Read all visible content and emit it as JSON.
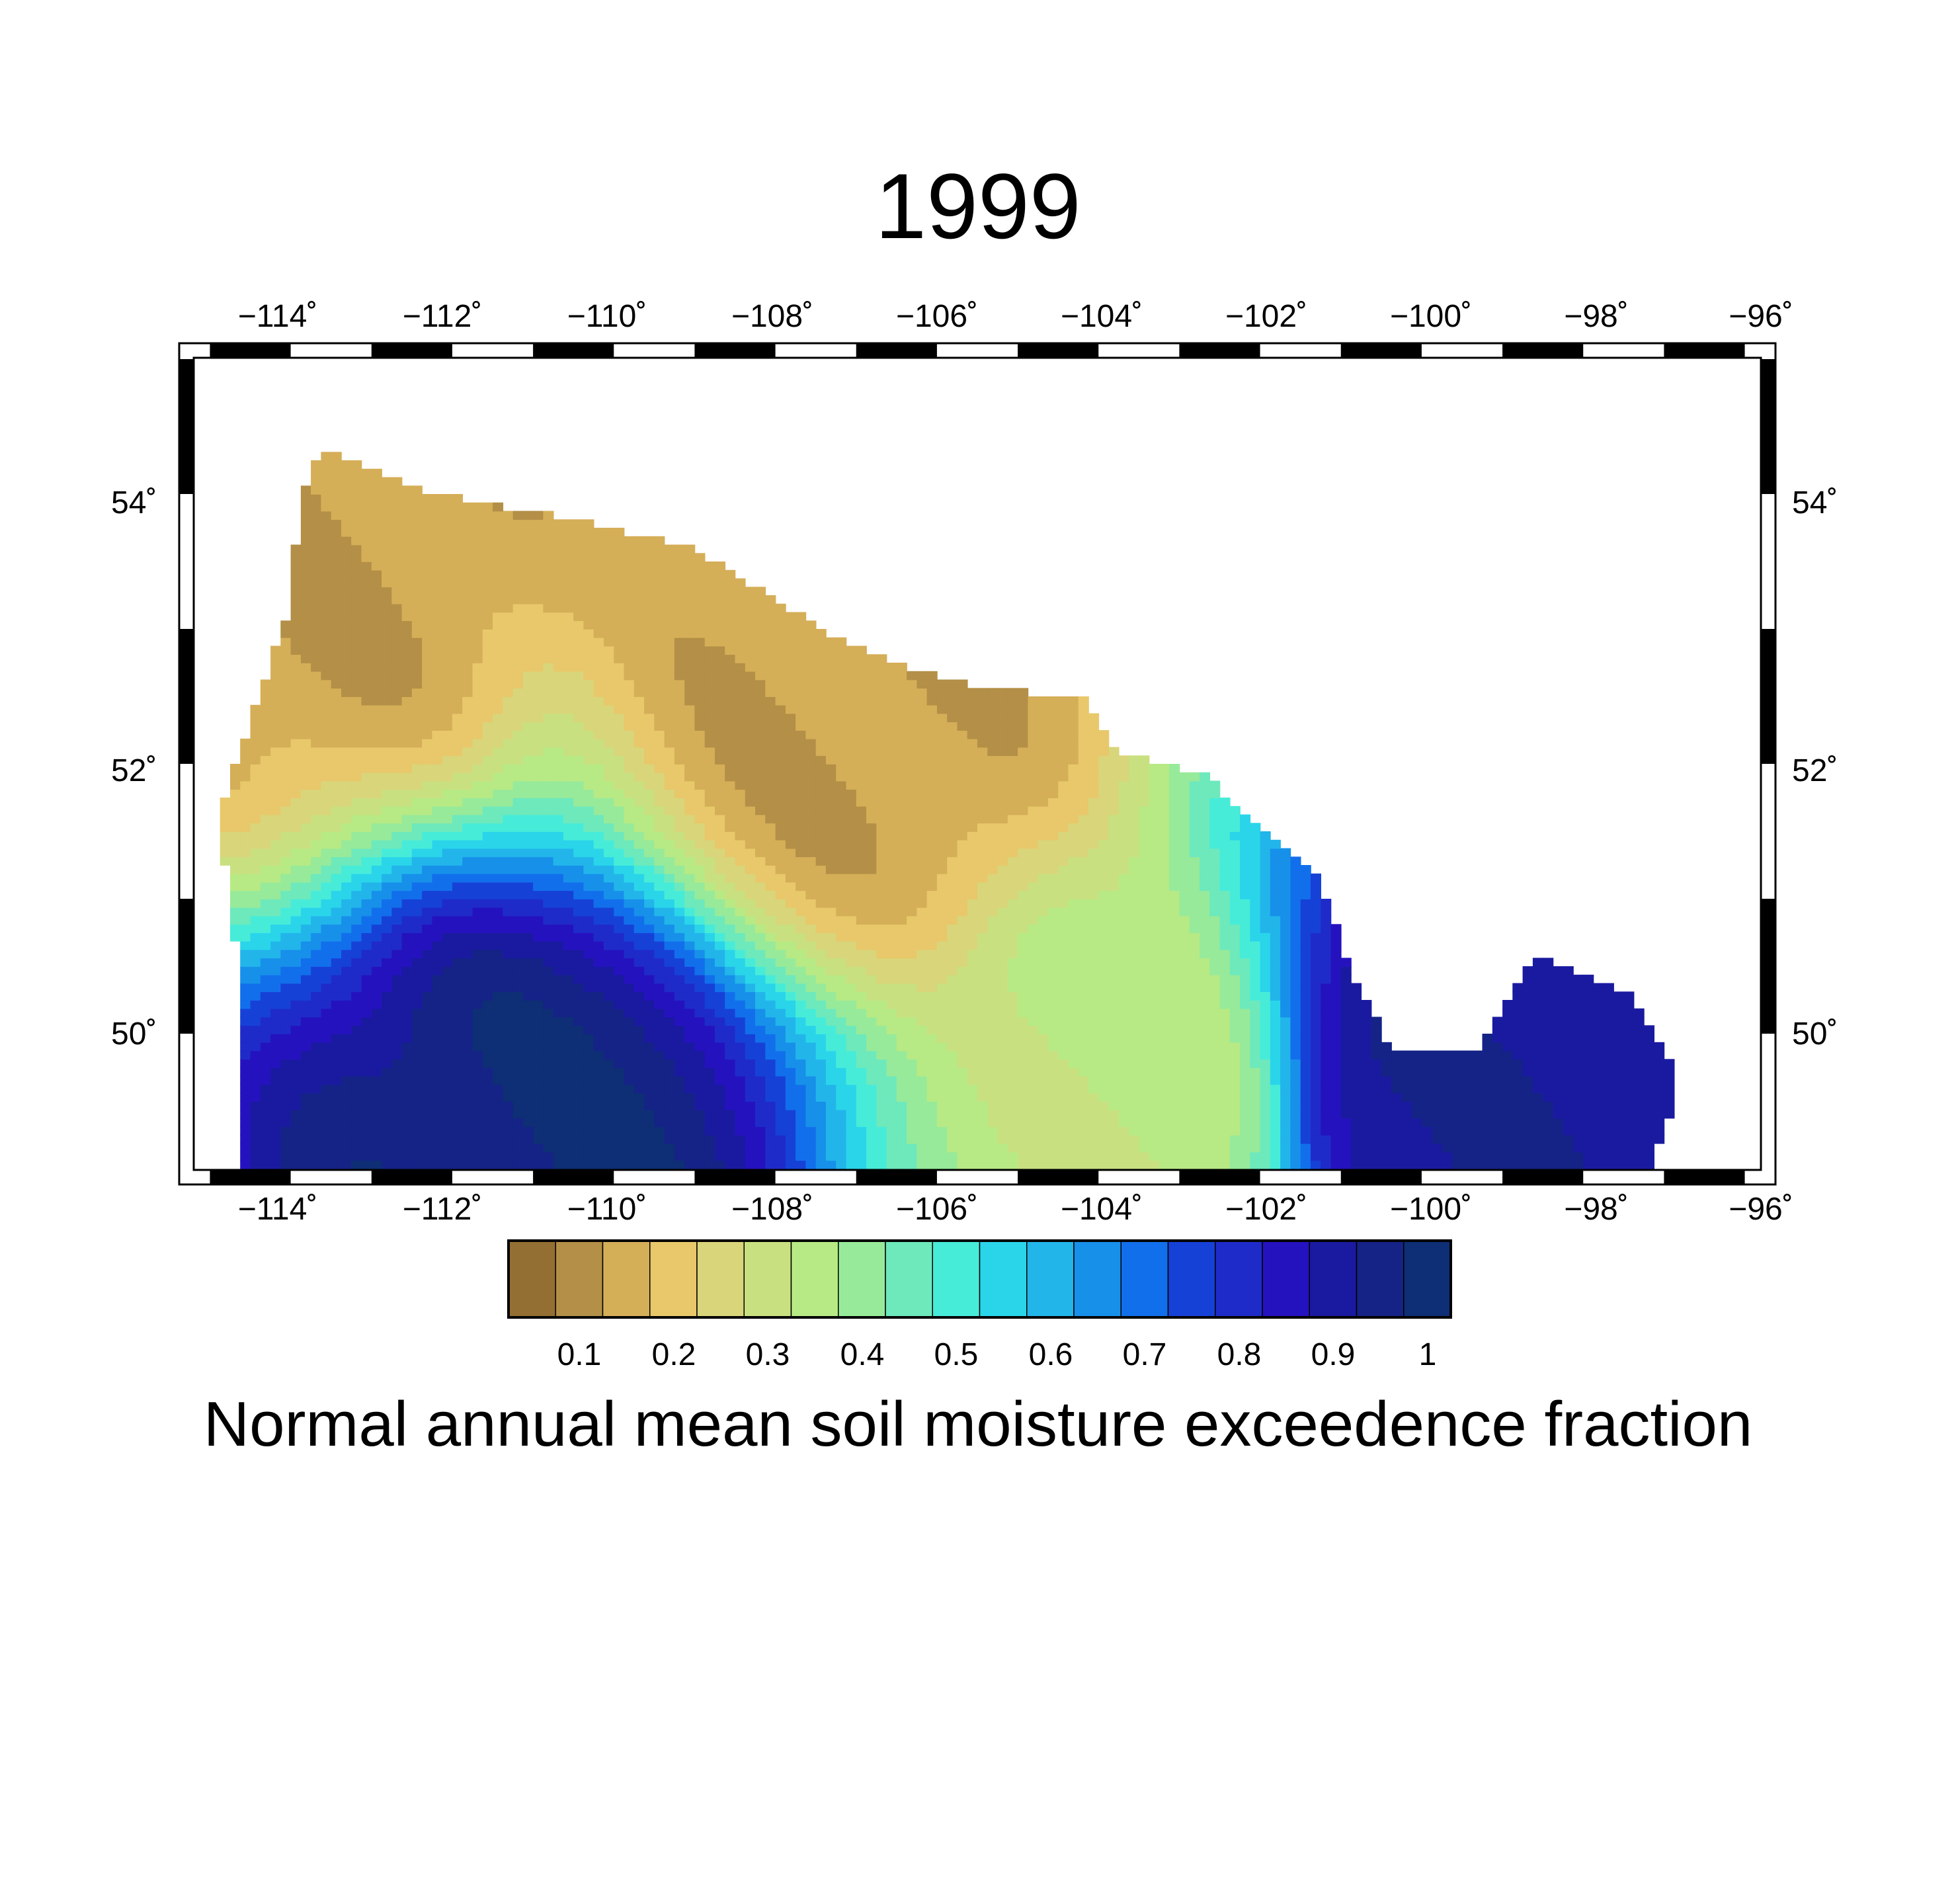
{
  "map_title": "1999",
  "variable_label": "Normal annual mean soil moisture exceedence fraction",
  "lon_ticks": [
    "−114˚",
    "−112˚",
    "−110˚",
    "−108˚",
    "−106˚",
    "−104˚",
    "−102˚",
    "−100˚",
    "−98˚",
    "−96˚"
  ],
  "lat_ticks": [
    "50˚",
    "52˚",
    "54˚"
  ],
  "colorbar": {
    "tick_labels": [
      "0.1",
      "0.2",
      "0.3",
      "0.4",
      "0.5",
      "0.6",
      "0.7",
      "0.8",
      "0.9",
      "1"
    ],
    "colors": [
      "#946f33",
      "#b38f47",
      "#d5ae58",
      "#e8c86a",
      "#d9d57a",
      "#c9e080",
      "#b7ea84",
      "#97ea9a",
      "#6de9bc",
      "#47ecd9",
      "#2ad5ea",
      "#22b5ea",
      "#1790ea",
      "#126feb",
      "#1641d7",
      "#1f2bc8",
      "#2512bf",
      "#1a1aa0",
      "#152387",
      "#0e2e75"
    ]
  },
  "chart_data": {
    "type": "heatmap",
    "title": "1999",
    "colorbar_label": "Normal annual mean soil moisture exceedence fraction",
    "x_axis": {
      "unit": "degrees longitude",
      "range": [
        -115.2,
        -95.8
      ],
      "ticks": [
        -114,
        -112,
        -110,
        -108,
        -106,
        -104,
        -102,
        -100,
        -98,
        -96
      ]
    },
    "y_axis": {
      "unit": "degrees latitude",
      "range": [
        49.0,
        55.0
      ],
      "ticks": [
        50,
        52,
        54
      ]
    },
    "value_range": [
      0.0,
      1.0
    ],
    "levels": [
      0.05,
      0.1,
      0.15,
      0.2,
      0.25,
      0.3,
      0.35,
      0.4,
      0.45,
      0.5,
      0.55,
      0.6,
      0.65,
      0.7,
      0.75,
      0.8,
      0.85,
      0.9,
      0.95,
      1.0
    ],
    "approximate_features": [
      {
        "description": "wet center",
        "lon": -110.8,
        "lat": 49.1,
        "value": 0.95
      },
      {
        "description": "wet center",
        "lon": -99.8,
        "lat": 49.5,
        "value": 0.9
      },
      {
        "description": "dry center",
        "lon": -107.0,
        "lat": 52.4,
        "value": 0.1
      },
      {
        "description": "dry center",
        "lon": -113.8,
        "lat": 53.7,
        "value": 0.1
      },
      {
        "description": "local minimum",
        "lon": -103.5,
        "lat": 49.3,
        "value": 0.3
      }
    ]
  }
}
